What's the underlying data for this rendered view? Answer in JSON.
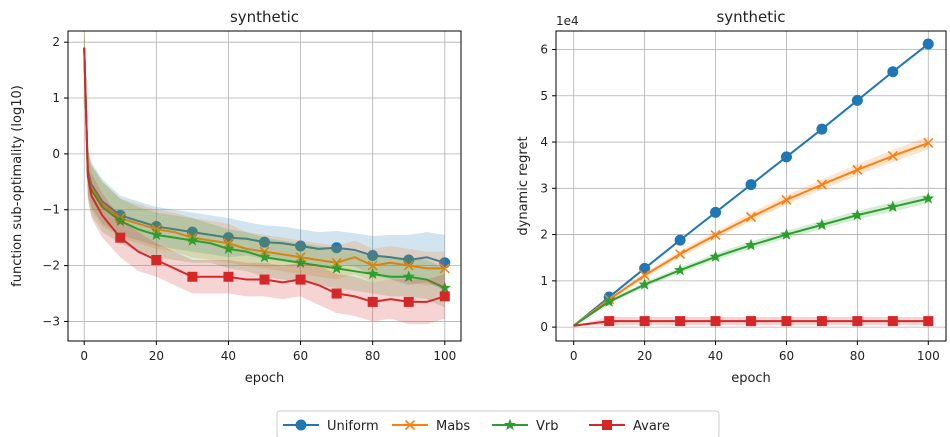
{
  "figure": {
    "legend": [
      "Uniform",
      "Mabs",
      "Vrb",
      "Avare"
    ]
  },
  "colors": {
    "Uniform": "#1f77b4",
    "Mabs": "#ff7f0e",
    "Vrb": "#2ca02c",
    "Avare": "#d62728"
  },
  "chart_data": [
    {
      "type": "line",
      "title": "synthetic",
      "xlabel": "epoch",
      "ylabel": "function sub-optimality (log10)",
      "xlim": [
        -4.5,
        104.5
      ],
      "ylim": [
        -3.35,
        2.2
      ],
      "xticks": [
        0,
        20,
        40,
        60,
        80,
        100
      ],
      "yticks": [
        -3,
        -2,
        -1,
        0,
        1,
        2
      ],
      "grid": true,
      "x": [
        0,
        1,
        2,
        5,
        10,
        15,
        20,
        25,
        30,
        35,
        40,
        45,
        50,
        55,
        60,
        65,
        70,
        75,
        80,
        85,
        90,
        95,
        100
      ],
      "series": [
        {
          "name": "Uniform",
          "marker": "circle",
          "markevery_from": 10,
          "values": [
            1.9,
            -0.3,
            -0.55,
            -0.85,
            -1.1,
            -1.2,
            -1.3,
            -1.35,
            -1.4,
            -1.45,
            -1.5,
            -1.52,
            -1.58,
            -1.6,
            -1.65,
            -1.7,
            -1.68,
            -1.72,
            -1.82,
            -1.85,
            -1.9,
            -1.85,
            -1.95
          ],
          "band": [
            0.4,
            0.4,
            0.4,
            0.4,
            0.35,
            0.35,
            0.35,
            0.35,
            0.35,
            0.35,
            0.35,
            0.3,
            0.3,
            0.3,
            0.3,
            0.3,
            0.3,
            0.3,
            0.35,
            0.4,
            0.45,
            0.45,
            0.5
          ]
        },
        {
          "name": "Mabs",
          "marker": "x",
          "markevery_from": 10,
          "values": [
            1.9,
            -0.35,
            -0.6,
            -0.9,
            -1.15,
            -1.25,
            -1.35,
            -1.4,
            -1.5,
            -1.55,
            -1.6,
            -1.7,
            -1.75,
            -1.8,
            -1.85,
            -1.9,
            -1.95,
            -1.85,
            -2.0,
            -1.95,
            -2.0,
            -2.05,
            -2.05
          ],
          "band": [
            0.4,
            0.4,
            0.4,
            0.4,
            0.35,
            0.35,
            0.35,
            0.35,
            0.35,
            0.35,
            0.35,
            0.3,
            0.3,
            0.3,
            0.3,
            0.3,
            0.3,
            0.3,
            0.3,
            0.3,
            0.3,
            0.3,
            0.3
          ]
        },
        {
          "name": "Vrb",
          "marker": "star",
          "markevery_from": 10,
          "values": [
            1.9,
            -0.35,
            -0.65,
            -0.95,
            -1.2,
            -1.35,
            -1.45,
            -1.5,
            -1.55,
            -1.6,
            -1.7,
            -1.75,
            -1.85,
            -1.9,
            -1.95,
            -2.0,
            -2.05,
            -2.1,
            -2.15,
            -2.2,
            -2.2,
            -2.25,
            -2.4
          ],
          "band": [
            0.45,
            0.45,
            0.45,
            0.45,
            0.4,
            0.4,
            0.4,
            0.4,
            0.4,
            0.35,
            0.35,
            0.35,
            0.35,
            0.35,
            0.35,
            0.35,
            0.35,
            0.35,
            0.35,
            0.35,
            0.35,
            0.35,
            0.35
          ]
        },
        {
          "name": "Avare",
          "marker": "square",
          "markevery_from": 10,
          "values": [
            1.9,
            -0.4,
            -0.75,
            -1.1,
            -1.5,
            -1.75,
            -1.9,
            -2.05,
            -2.2,
            -2.2,
            -2.2,
            -2.25,
            -2.25,
            -2.3,
            -2.25,
            -2.35,
            -2.5,
            -2.55,
            -2.65,
            -2.6,
            -2.65,
            -2.65,
            -2.55
          ],
          "band": [
            0.4,
            0.4,
            0.4,
            0.4,
            0.35,
            0.35,
            0.3,
            0.3,
            0.3,
            0.3,
            0.3,
            0.3,
            0.3,
            0.3,
            0.3,
            0.35,
            0.35,
            0.35,
            0.35,
            0.35,
            0.4,
            0.4,
            0.4
          ]
        }
      ]
    },
    {
      "type": "line",
      "title": "synthetic",
      "xlabel": "epoch",
      "ylabel": "dynamic regret",
      "scale_label": "1e4",
      "xlim": [
        -5,
        105
      ],
      "ylim": [
        -0.3,
        6.4
      ],
      "xticks": [
        0,
        20,
        40,
        60,
        80,
        100
      ],
      "yticks": [
        0,
        1,
        2,
        3,
        4,
        5,
        6
      ],
      "grid": true,
      "x": [
        0,
        10,
        20,
        30,
        40,
        50,
        60,
        70,
        80,
        90,
        100
      ],
      "series": [
        {
          "name": "Uniform",
          "marker": "circle",
          "values": [
            0.03,
            0.65,
            1.27,
            1.88,
            2.48,
            3.08,
            3.68,
            4.28,
            4.9,
            5.52,
            6.12
          ],
          "band": [
            0,
            0.03,
            0.03,
            0.03,
            0.03,
            0.03,
            0.03,
            0.03,
            0.03,
            0.03,
            0.03
          ]
        },
        {
          "name": "Mabs",
          "marker": "x",
          "values": [
            0.03,
            0.6,
            1.12,
            1.58,
            1.99,
            2.38,
            2.75,
            3.08,
            3.4,
            3.7,
            3.98
          ],
          "band": [
            0,
            0.05,
            0.06,
            0.07,
            0.08,
            0.09,
            0.1,
            0.11,
            0.12,
            0.13,
            0.14
          ]
        },
        {
          "name": "Vrb",
          "marker": "star",
          "values": [
            0.03,
            0.55,
            0.92,
            1.23,
            1.52,
            1.77,
            2.0,
            2.21,
            2.42,
            2.6,
            2.78
          ],
          "band": [
            0,
            0.04,
            0.05,
            0.06,
            0.07,
            0.08,
            0.08,
            0.09,
            0.09,
            0.1,
            0.1
          ]
        },
        {
          "name": "Avare",
          "marker": "square",
          "values": [
            0.03,
            0.13,
            0.13,
            0.13,
            0.13,
            0.13,
            0.13,
            0.13,
            0.13,
            0.13,
            0.13
          ],
          "band": [
            0,
            0.09,
            0.09,
            0.09,
            0.09,
            0.09,
            0.09,
            0.09,
            0.09,
            0.09,
            0.09
          ]
        }
      ]
    }
  ]
}
